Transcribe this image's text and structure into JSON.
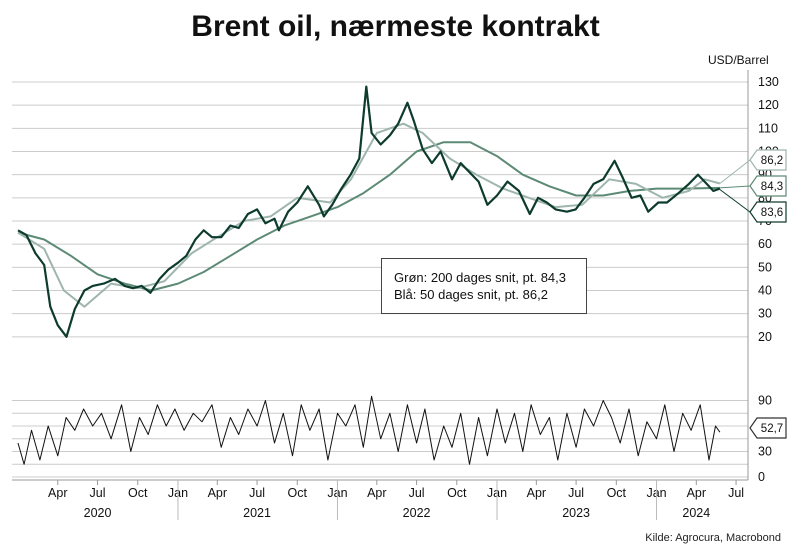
{
  "title": "Brent oil, nærmeste kontrakt",
  "unit": "USD/Barrel",
  "legend": {
    "line1": "Grøn: 200 dages snit, pt. 84,3",
    "line2": "Blå: 50 dages snit, pt. 86,2"
  },
  "source": "Kilde: Agrocura, Macrobond",
  "colors": {
    "price": "#0d3b2e",
    "ma200": "#5d8a75",
    "ma50": "#9eb5ad",
    "oscillator": "#111111",
    "grid": "#cccccc"
  },
  "chart_data": [
    {
      "type": "line",
      "title": "Brent oil, nærmeste kontrakt",
      "ylabel": "USD/Barrel",
      "ylim": [
        10,
        130
      ],
      "yticks": [
        20,
        30,
        40,
        50,
        60,
        70,
        80,
        90,
        100,
        110,
        120,
        130
      ],
      "series": [
        {
          "name": "Brent",
          "x": [
            "2020-01-01",
            "2020-01-20",
            "2020-02-10",
            "2020-03-01",
            "2020-03-15",
            "2020-04-01",
            "2020-04-21",
            "2020-05-10",
            "2020-06-01",
            "2020-06-20",
            "2020-07-15",
            "2020-08-10",
            "2020-09-01",
            "2020-09-20",
            "2020-10-10",
            "2020-10-30",
            "2020-11-20",
            "2020-12-10",
            "2021-01-01",
            "2021-01-20",
            "2021-02-10",
            "2021-03-01",
            "2021-03-20",
            "2021-04-10",
            "2021-05-01",
            "2021-05-20",
            "2021-06-10",
            "2021-07-01",
            "2021-07-20",
            "2021-08-10",
            "2021-08-20",
            "2021-09-10",
            "2021-10-01",
            "2021-10-25",
            "2021-11-20",
            "2021-12-01",
            "2021-12-20",
            "2022-01-10",
            "2022-01-31",
            "2022-02-20",
            "2022-03-08",
            "2022-03-20",
            "2022-04-10",
            "2022-05-01",
            "2022-05-20",
            "2022-06-10",
            "2022-06-25",
            "2022-07-15",
            "2022-08-05",
            "2022-08-25",
            "2022-09-20",
            "2022-10-10",
            "2022-10-30",
            "2022-11-20",
            "2022-12-10",
            "2023-01-01",
            "2023-01-25",
            "2023-02-20",
            "2023-03-17",
            "2023-04-05",
            "2023-04-25",
            "2023-05-15",
            "2023-06-10",
            "2023-06-30",
            "2023-07-20",
            "2023-08-10",
            "2023-09-01",
            "2023-09-27",
            "2023-10-15",
            "2023-11-05",
            "2023-11-25",
            "2023-12-13",
            "2024-01-05",
            "2024-01-25",
            "2024-02-20",
            "2024-03-15",
            "2024-04-05",
            "2024-04-20",
            "2024-05-10",
            "2024-05-25"
          ],
          "values": [
            66,
            64,
            56,
            51,
            33,
            25,
            20,
            32,
            40,
            42,
            43,
            45,
            42,
            41,
            42,
            39,
            45,
            49,
            52,
            55,
            62,
            66,
            63,
            63,
            68,
            67,
            73,
            75,
            69,
            71,
            66,
            74,
            78,
            85,
            77,
            72,
            77,
            84,
            90,
            97,
            128,
            108,
            103,
            107,
            112,
            121,
            113,
            101,
            95,
            100,
            88,
            95,
            91,
            87,
            77,
            81,
            87,
            83,
            73,
            80,
            78,
            75,
            74,
            75,
            80,
            86,
            88,
            96,
            89,
            80,
            81,
            74,
            78,
            78,
            82,
            86,
            90,
            87,
            83,
            84
          ]
        },
        {
          "name": "200 dages snit",
          "x": [
            "2020-01-01",
            "2020-03-01",
            "2020-05-01",
            "2020-07-01",
            "2020-09-01",
            "2020-11-01",
            "2021-01-01",
            "2021-03-01",
            "2021-05-01",
            "2021-07-01",
            "2021-09-01",
            "2021-11-01",
            "2022-01-01",
            "2022-03-01",
            "2022-05-01",
            "2022-07-01",
            "2022-09-01",
            "2022-11-01",
            "2023-01-01",
            "2023-03-01",
            "2023-05-01",
            "2023-07-01",
            "2023-09-01",
            "2023-11-01",
            "2024-01-01",
            "2024-03-01",
            "2024-05-25"
          ],
          "values": [
            65,
            62,
            55,
            47,
            43,
            40,
            43,
            48,
            55,
            62,
            68,
            72,
            76,
            82,
            90,
            100,
            104,
            104,
            98,
            90,
            85,
            81,
            81,
            83,
            84,
            84,
            84.3
          ]
        },
        {
          "name": "50 dages snit",
          "x": [
            "2020-01-01",
            "2020-03-01",
            "2020-04-15",
            "2020-06-01",
            "2020-08-01",
            "2020-10-01",
            "2020-12-01",
            "2021-02-01",
            "2021-04-01",
            "2021-06-01",
            "2021-08-01",
            "2021-10-01",
            "2021-12-15",
            "2022-02-01",
            "2022-04-01",
            "2022-06-01",
            "2022-07-15",
            "2022-09-15",
            "2022-11-15",
            "2023-01-15",
            "2023-03-15",
            "2023-05-15",
            "2023-07-15",
            "2023-09-15",
            "2023-11-15",
            "2024-01-15",
            "2024-03-15",
            "2024-04-20",
            "2024-05-25"
          ],
          "values": [
            65,
            58,
            40,
            33,
            43,
            41,
            44,
            56,
            63,
            70,
            72,
            80,
            78,
            88,
            108,
            112,
            108,
            97,
            90,
            84,
            80,
            76,
            77,
            88,
            86,
            80,
            83,
            88,
            86.2
          ]
        }
      ],
      "end_labels": [
        "86,2",
        "84,3",
        "83,6"
      ]
    },
    {
      "type": "line",
      "ylim": [
        0,
        100
      ],
      "yticks": [
        0,
        30,
        60,
        90
      ],
      "end_label": "52,7",
      "series": [
        {
          "x": [
            "2020-01-01",
            "2020-01-15",
            "2020-02-01",
            "2020-02-20",
            "2020-03-10",
            "2020-04-01",
            "2020-04-20",
            "2020-05-10",
            "2020-05-30",
            "2020-06-20",
            "2020-07-10",
            "2020-08-01",
            "2020-08-25",
            "2020-09-15",
            "2020-10-05",
            "2020-10-25",
            "2020-11-15",
            "2020-12-05",
            "2020-12-25",
            "2021-01-15",
            "2021-02-05",
            "2021-02-25",
            "2021-03-20",
            "2021-04-10",
            "2021-05-01",
            "2021-05-20",
            "2021-06-10",
            "2021-07-01",
            "2021-07-20",
            "2021-08-10",
            "2021-08-30",
            "2021-09-20",
            "2021-10-10",
            "2021-10-30",
            "2021-11-20",
            "2021-12-10",
            "2022-01-01",
            "2022-01-20",
            "2022-02-10",
            "2022-03-01",
            "2022-03-20",
            "2022-04-10",
            "2022-05-01",
            "2022-05-20",
            "2022-06-10",
            "2022-07-01",
            "2022-07-20",
            "2022-08-10",
            "2022-09-01",
            "2022-09-20",
            "2022-10-10",
            "2022-10-30",
            "2022-11-20",
            "2022-12-10",
            "2023-01-01",
            "2023-01-20",
            "2023-02-10",
            "2023-03-01",
            "2023-03-20",
            "2023-04-10",
            "2023-05-01",
            "2023-05-20",
            "2023-06-10",
            "2023-07-01",
            "2023-07-20",
            "2023-08-10",
            "2023-09-01",
            "2023-09-20",
            "2023-10-10",
            "2023-10-30",
            "2023-11-20",
            "2023-12-10",
            "2024-01-01",
            "2024-01-20",
            "2024-02-10",
            "2024-03-01",
            "2024-03-20",
            "2024-04-10",
            "2024-04-30",
            "2024-05-15",
            "2024-05-25"
          ],
          "values": [
            40,
            15,
            55,
            20,
            60,
            25,
            70,
            55,
            80,
            60,
            75,
            45,
            85,
            30,
            70,
            50,
            85,
            60,
            80,
            55,
            75,
            65,
            85,
            35,
            70,
            50,
            80,
            60,
            90,
            40,
            75,
            25,
            85,
            55,
            80,
            20,
            75,
            60,
            85,
            35,
            95,
            45,
            75,
            30,
            85,
            40,
            80,
            20,
            60,
            35,
            75,
            15,
            70,
            25,
            80,
            40,
            75,
            30,
            85,
            50,
            70,
            20,
            75,
            35,
            80,
            60,
            90,
            70,
            40,
            80,
            25,
            65,
            45,
            85,
            30,
            75,
            55,
            85,
            20,
            60,
            52.7
          ]
        }
      ]
    }
  ],
  "x_axis": {
    "months": [
      "Apr",
      "Jul",
      "Oct",
      "Jan",
      "Apr",
      "Jul",
      "Oct",
      "Jan",
      "Apr",
      "Jul",
      "Oct",
      "Jan",
      "Apr",
      "Jul",
      "Oct",
      "Jan",
      "Apr",
      "Jul"
    ],
    "years": [
      "2020",
      "2021",
      "2022",
      "2023",
      "2024"
    ]
  }
}
